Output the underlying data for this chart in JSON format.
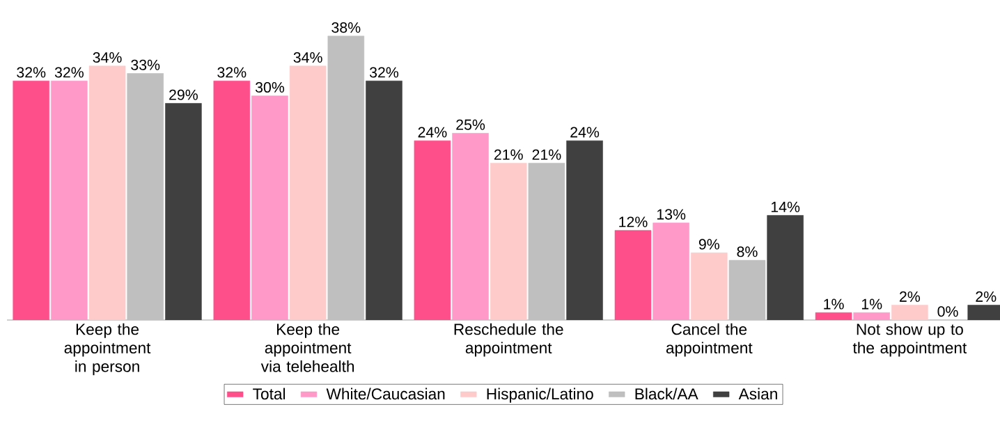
{
  "chart_data": {
    "type": "bar",
    "categories": [
      "Keep the appointment in person",
      "Keep the appointment via telehealth",
      "Reschedule the appointment",
      "Cancel the appointment",
      "Not show up to the appointment"
    ],
    "series": [
      {
        "name": "Total",
        "color": "#ff4f8b",
        "values": [
          32,
          32,
          24,
          12,
          1
        ],
        "value_labels": [
          "32%",
          "32%",
          "24%",
          "12%",
          "1%"
        ]
      },
      {
        "name": "White/Caucasian",
        "color": "#ff99c8",
        "values": [
          32,
          30,
          25,
          13,
          1
        ],
        "value_labels": [
          "32%",
          "30%",
          "25%",
          "13%",
          "1%"
        ]
      },
      {
        "name": "Hispanic/Latino",
        "color": "#ffcaca",
        "values": [
          34,
          34,
          21,
          9,
          2
        ],
        "value_labels": [
          "34%",
          "34%",
          "21%",
          "9%",
          "2%"
        ]
      },
      {
        "name": "Black/AA",
        "color": "#bfbfbf",
        "values": [
          33,
          38,
          21,
          8,
          0
        ],
        "value_labels": [
          "33%",
          "38%",
          "21%",
          "8%",
          "0%"
        ]
      },
      {
        "name": "Asian",
        "color": "#404040",
        "values": [
          29,
          32,
          24,
          14,
          2
        ],
        "value_labels": [
          "29%",
          "32%",
          "24%",
          "14%",
          "2%"
        ]
      }
    ],
    "legend": "bottom",
    "grid": false
  }
}
